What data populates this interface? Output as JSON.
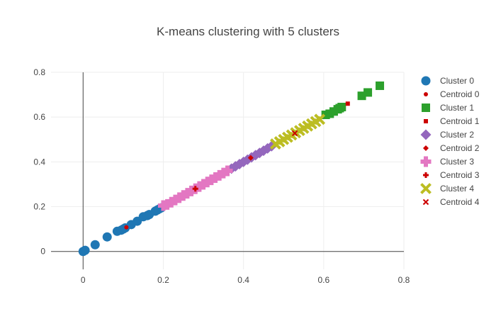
{
  "chart_data": {
    "type": "scatter",
    "title": "K-means clustering with 5 clusters",
    "xlabel": "",
    "ylabel": "",
    "xlim": [
      -0.08,
      0.8
    ],
    "ylim": [
      -0.08,
      0.8
    ],
    "xticks": [
      0,
      0.2,
      0.4,
      0.6,
      0.8
    ],
    "yticks": [
      0,
      0.2,
      0.4,
      0.6,
      0.8
    ],
    "xtick_labels": [
      "0",
      "0.2",
      "0.4",
      "0.6",
      "0.8"
    ],
    "ytick_labels": [
      "0",
      "0.2",
      "0.4",
      "0.6",
      "0.8"
    ],
    "grid": true,
    "legend_position": "right",
    "series": [
      {
        "name": "Cluster 0",
        "marker": "circle",
        "color": "#1f77b4",
        "points": [
          [
            0.0,
            0.0
          ],
          [
            0.005,
            0.005
          ],
          [
            0.03,
            0.03
          ],
          [
            0.06,
            0.065
          ],
          [
            0.085,
            0.09
          ],
          [
            0.095,
            0.095
          ],
          [
            0.1,
            0.1
          ],
          [
            0.105,
            0.105
          ],
          [
            0.12,
            0.12
          ],
          [
            0.135,
            0.135
          ],
          [
            0.15,
            0.155
          ],
          [
            0.16,
            0.16
          ],
          [
            0.165,
            0.165
          ],
          [
            0.18,
            0.18
          ],
          [
            0.185,
            0.185
          ],
          [
            0.19,
            0.19
          ],
          [
            0.195,
            0.195
          ]
        ]
      },
      {
        "name": "Centroid 0",
        "marker": "circle-small",
        "color": "#cc0000",
        "points": [
          [
            0.108,
            0.108
          ]
        ]
      },
      {
        "name": "Cluster 1",
        "marker": "square",
        "color": "#2ca02c",
        "points": [
          [
            0.605,
            0.61
          ],
          [
            0.615,
            0.615
          ],
          [
            0.625,
            0.625
          ],
          [
            0.635,
            0.635
          ],
          [
            0.64,
            0.64
          ],
          [
            0.645,
            0.645
          ],
          [
            0.695,
            0.695
          ],
          [
            0.71,
            0.71
          ],
          [
            0.74,
            0.74
          ]
        ]
      },
      {
        "name": "Centroid 1",
        "marker": "square-small",
        "color": "#cc0000",
        "points": [
          [
            0.66,
            0.66
          ]
        ]
      },
      {
        "name": "Cluster 2",
        "marker": "diamond",
        "color": "#9467bd",
        "points": [
          [
            0.37,
            0.37
          ],
          [
            0.38,
            0.38
          ],
          [
            0.39,
            0.39
          ],
          [
            0.4,
            0.4
          ],
          [
            0.41,
            0.41
          ],
          [
            0.42,
            0.42
          ],
          [
            0.43,
            0.43
          ],
          [
            0.44,
            0.44
          ],
          [
            0.45,
            0.45
          ],
          [
            0.46,
            0.46
          ],
          [
            0.47,
            0.47
          ]
        ]
      },
      {
        "name": "Centroid 2",
        "marker": "diamond-small",
        "color": "#cc0000",
        "points": [
          [
            0.418,
            0.418
          ]
        ]
      },
      {
        "name": "Cluster 3",
        "marker": "cross",
        "color": "#e377c2",
        "points": [
          [
            0.2,
            0.205
          ],
          [
            0.21,
            0.21
          ],
          [
            0.22,
            0.22
          ],
          [
            0.23,
            0.23
          ],
          [
            0.24,
            0.24
          ],
          [
            0.25,
            0.25
          ],
          [
            0.26,
            0.26
          ],
          [
            0.27,
            0.27
          ],
          [
            0.28,
            0.28
          ],
          [
            0.29,
            0.29
          ],
          [
            0.3,
            0.3
          ],
          [
            0.31,
            0.31
          ],
          [
            0.32,
            0.32
          ],
          [
            0.33,
            0.33
          ],
          [
            0.34,
            0.34
          ],
          [
            0.35,
            0.35
          ],
          [
            0.36,
            0.36
          ]
        ]
      },
      {
        "name": "Centroid 3",
        "marker": "cross-small",
        "color": "#cc0000",
        "points": [
          [
            0.28,
            0.28
          ]
        ]
      },
      {
        "name": "Cluster 4",
        "marker": "x",
        "color": "#bcbd22",
        "points": [
          [
            0.48,
            0.48
          ],
          [
            0.49,
            0.49
          ],
          [
            0.5,
            0.5
          ],
          [
            0.51,
            0.51
          ],
          [
            0.52,
            0.52
          ],
          [
            0.53,
            0.53
          ],
          [
            0.54,
            0.54
          ],
          [
            0.55,
            0.55
          ],
          [
            0.56,
            0.56
          ],
          [
            0.57,
            0.57
          ],
          [
            0.58,
            0.58
          ],
          [
            0.59,
            0.59
          ]
        ]
      },
      {
        "name": "Centroid 4",
        "marker": "x-small",
        "color": "#cc0000",
        "points": [
          [
            0.528,
            0.528
          ]
        ]
      }
    ]
  }
}
